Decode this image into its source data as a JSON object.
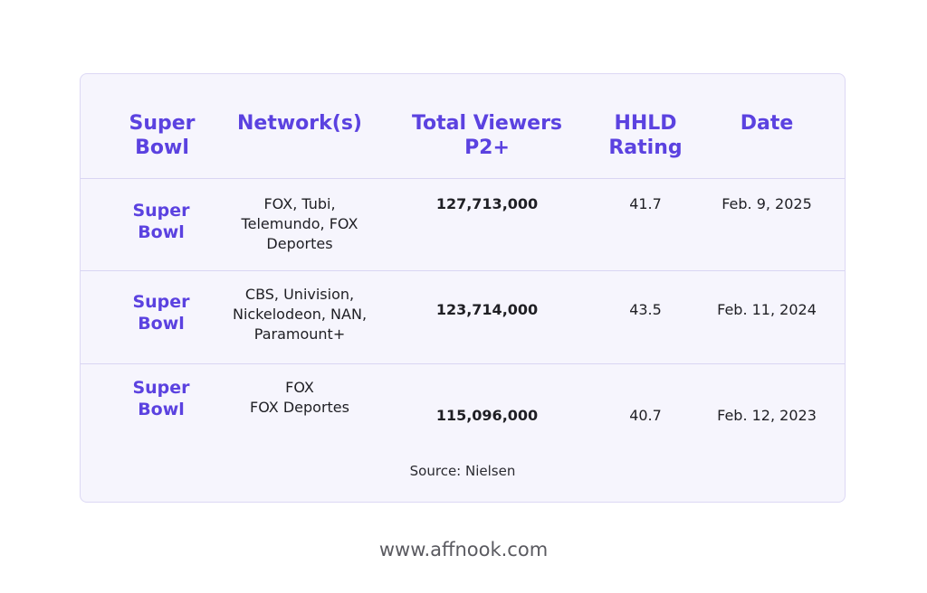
{
  "table": {
    "headers": [
      "Super\nBowl",
      "Network(s)",
      "Total Viewers\nP2+",
      "HHLD\nRating",
      "Date"
    ],
    "rows": [
      {
        "event": "Super Bowl",
        "networks": "FOX, Tubi, Telemundo, FOX Deportes",
        "viewers": "127,713,000",
        "rating": "41.7",
        "date": "Feb. 9, 2025"
      },
      {
        "event": "Super Bowl",
        "networks": "CBS, Univision, Nickelodeon, NAN, Paramount+",
        "viewers": "123,714,000",
        "rating": "43.5",
        "date": "Feb. 11, 2024"
      },
      {
        "event": "Super Bowl",
        "networks": "FOX\nFOX Deportes",
        "viewers": "115,096,000",
        "rating": "40.7",
        "date": "Feb. 12, 2023"
      }
    ],
    "source": "Source: Nielsen"
  },
  "footer": {
    "url": "www.affnook.com"
  },
  "colors": {
    "accent": "#5b42e0",
    "card_bg": "#f6f5fd",
    "border": "#d9d5f3"
  }
}
